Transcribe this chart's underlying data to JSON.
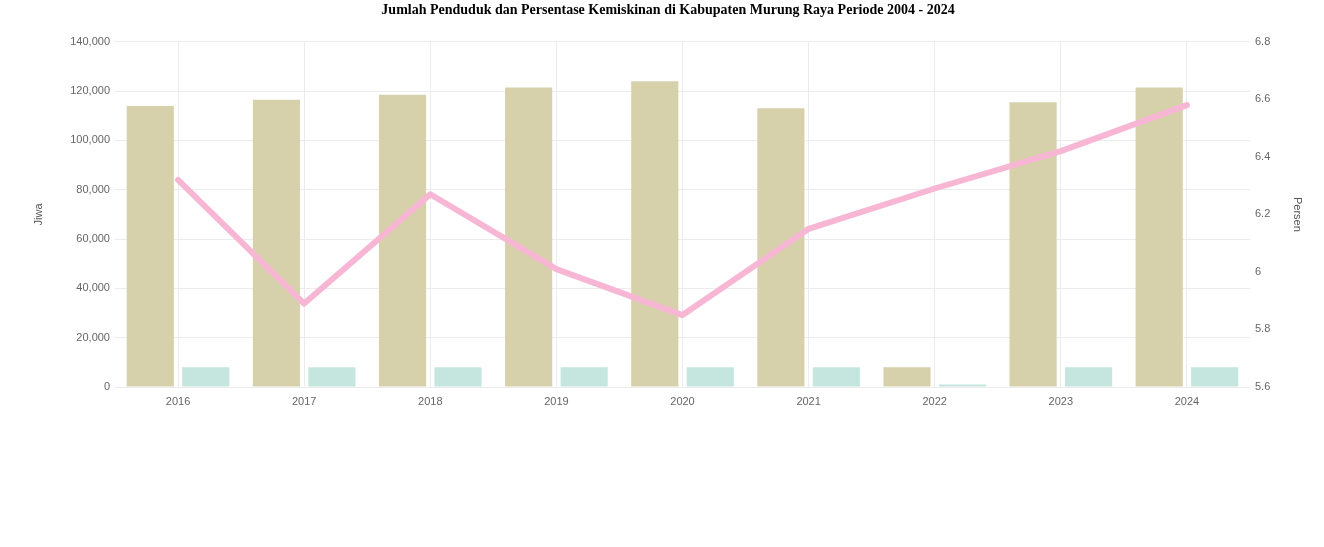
{
  "chart_data": {
    "type": "bar",
    "title": "Jumlah Penduduk dan Persentase Kemiskinan di Kabupaten Murung Raya Periode 2004 - 2024",
    "ylabel": "Jiwa",
    "y2label": "Persen",
    "categories": [
      "2016",
      "2017",
      "2018",
      "2019",
      "2020",
      "2021",
      "2022",
      "2023",
      "2024"
    ],
    "series": [
      {
        "color": "#d7d1ab",
        "values": [
          114000,
          116500,
          118500,
          121500,
          124000,
          113000,
          8000,
          115500,
          121500
        ]
      },
      {
        "color": "#c4e6de",
        "values": [
          8000,
          8000,
          8000,
          8000,
          8000,
          8000,
          1000,
          8000,
          8000
        ]
      },
      {
        "type": "line",
        "axis": "y2",
        "color": "#f8b6d5",
        "values": [
          6.32,
          5.89,
          6.27,
          6.01,
          5.85,
          6.15,
          6.29,
          6.42,
          6.58
        ]
      }
    ],
    "ylim": [
      0,
      140000
    ],
    "yticks": [
      0,
      {
        "value": 20000,
        "label": "20,000"
      },
      {
        "value": 40000,
        "label": "40,000"
      },
      {
        "value": 60000,
        "label": "60,000"
      },
      {
        "value": 80000,
        "label": "80,000"
      },
      {
        "value": 100000,
        "label": "100,000"
      },
      {
        "value": 120000,
        "label": "120,000"
      },
      {
        "value": 140000,
        "label": "140,000"
      }
    ],
    "y2lim": [
      5.6,
      6.8
    ],
    "y2ticks": [
      5.6,
      5.8,
      6,
      6.2,
      6.4,
      6.6,
      6.8
    ],
    "grid": true,
    "legend": false,
    "marker": "none"
  }
}
